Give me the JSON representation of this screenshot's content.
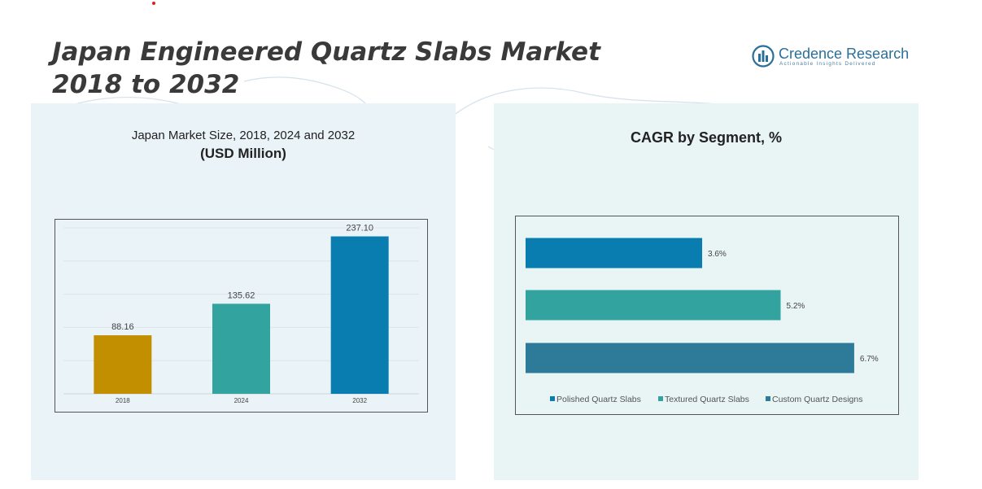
{
  "header": {
    "title_line1": "Japan Engineered Quartz Slabs Market",
    "title_line2": "2018 to 2032"
  },
  "logo": {
    "name": "Credence Research",
    "tagline": "Actionable Insights Delivered",
    "icon": "credence-logo-icon"
  },
  "left_panel": {
    "subtitle_line1": "Japan Market Size, 2018, 2024 and 2032",
    "subtitle_line2": "(USD Million)"
  },
  "right_panel": {
    "subtitle": "CAGR by Segment, %"
  },
  "chart_data": [
    {
      "type": "bar",
      "categories": [
        "2018",
        "2024",
        "2032"
      ],
      "values": [
        88.16,
        135.62,
        237.1
      ],
      "value_labels": [
        "88.16",
        "135.62",
        "237.10"
      ],
      "colors": [
        "#c18f00",
        "#33a3a0",
        "#0a7db0"
      ],
      "title": "Japan Market Size, 2018, 2024 and 2032",
      "ylabel": "(USD Million)",
      "ylim": [
        0,
        250
      ],
      "grid": true
    },
    {
      "type": "bar",
      "orientation": "horizontal",
      "series": [
        {
          "name": "Polished Quartz Slabs",
          "value": 3.6,
          "label": "3.6%",
          "color": "#0a7db0"
        },
        {
          "name": "Textured Quartz Slabs",
          "value": 5.2,
          "label": "5.2%",
          "color": "#33a3a0"
        },
        {
          "name": "Custom Quartz Designs",
          "value": 6.7,
          "label": "6.7%",
          "color": "#2e7a99"
        }
      ],
      "title": "CAGR by Segment, %",
      "xlim": [
        0,
        7
      ],
      "grid": false,
      "legend": "bottom"
    }
  ]
}
